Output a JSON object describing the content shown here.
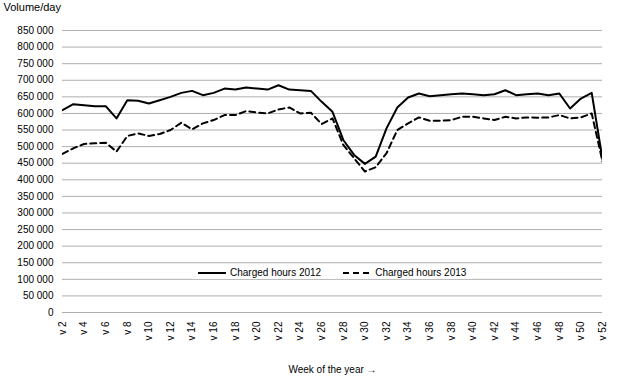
{
  "chart_data": {
    "type": "line",
    "y_label": "Volume/day",
    "x_label": "Week of the year",
    "x": [
      2,
      3,
      4,
      5,
      6,
      7,
      8,
      9,
      10,
      11,
      12,
      13,
      14,
      15,
      16,
      17,
      18,
      19,
      20,
      21,
      22,
      23,
      24,
      25,
      26,
      27,
      28,
      29,
      30,
      31,
      32,
      33,
      34,
      35,
      36,
      37,
      38,
      39,
      40,
      41,
      42,
      43,
      44,
      45,
      46,
      47,
      48,
      49,
      50,
      51,
      52
    ],
    "series": [
      {
        "name": "Charged hours 2012",
        "color": "#000000",
        "line_style": "solid",
        "values": [
          610000,
          628000,
          625000,
          622000,
          622000,
          585000,
          640000,
          638000,
          630000,
          640000,
          650000,
          662000,
          668000,
          655000,
          662000,
          675000,
          672000,
          678000,
          675000,
          672000,
          685000,
          672000,
          670000,
          668000,
          635000,
          605000,
          520000,
          475000,
          448000,
          470000,
          555000,
          618000,
          648000,
          660000,
          652000,
          655000,
          658000,
          660000,
          658000,
          655000,
          658000,
          670000,
          655000,
          658000,
          660000,
          655000,
          660000,
          615000,
          645000,
          662000,
          462000
        ]
      },
      {
        "name": "Charged hours 2013",
        "color": "#000000",
        "line_style": "dashed",
        "values": [
          478000,
          495000,
          508000,
          510000,
          512000,
          485000,
          532000,
          540000,
          532000,
          538000,
          550000,
          572000,
          552000,
          570000,
          580000,
          595000,
          595000,
          607000,
          603000,
          600000,
          612000,
          618000,
          600000,
          602000,
          568000,
          585000,
          505000,
          465000,
          425000,
          438000,
          480000,
          550000,
          570000,
          588000,
          578000,
          578000,
          580000,
          590000,
          590000,
          585000,
          580000,
          590000,
          585000,
          588000,
          587000,
          588000,
          595000,
          585000,
          588000,
          600000,
          455000
        ]
      }
    ],
    "xlim": [
      2,
      52
    ],
    "xticks": [
      {
        "value": 2,
        "label": "v 2"
      },
      {
        "value": 4,
        "label": "v 4"
      },
      {
        "value": 6,
        "label": "v 6"
      },
      {
        "value": 8,
        "label": "v 8"
      },
      {
        "value": 10,
        "label": "v 10"
      },
      {
        "value": 12,
        "label": "v 12"
      },
      {
        "value": 14,
        "label": "v 14"
      },
      {
        "value": 16,
        "label": "v 16"
      },
      {
        "value": 18,
        "label": "v 18"
      },
      {
        "value": 20,
        "label": "v 20"
      },
      {
        "value": 22,
        "label": "v 22"
      },
      {
        "value": 24,
        "label": "v 24"
      },
      {
        "value": 26,
        "label": "v 26"
      },
      {
        "value": 28,
        "label": "v 28"
      },
      {
        "value": 30,
        "label": "v 30"
      },
      {
        "value": 32,
        "label": "v 32"
      },
      {
        "value": 34,
        "label": "v 34"
      },
      {
        "value": 36,
        "label": "v 36"
      },
      {
        "value": 38,
        "label": "v 38"
      },
      {
        "value": 40,
        "label": "v 40"
      },
      {
        "value": 42,
        "label": "v 42"
      },
      {
        "value": 44,
        "label": "v 44"
      },
      {
        "value": 46,
        "label": "v 46"
      },
      {
        "value": 48,
        "label": "v 48"
      },
      {
        "value": 50,
        "label": "v 50"
      },
      {
        "value": 52,
        "label": "v 52"
      }
    ],
    "ylim": [
      0,
      850000
    ],
    "yticks": [
      0,
      {
        "value": 50000,
        "label": "50 000"
      },
      {
        "value": 100000,
        "label": "100 000"
      },
      {
        "value": 150000,
        "label": "150 000"
      },
      {
        "value": 200000,
        "label": "200 000"
      },
      {
        "value": 250000,
        "label": "250 000"
      },
      {
        "value": 300000,
        "label": "300 000"
      },
      {
        "value": 350000,
        "label": "350 000"
      },
      {
        "value": 400000,
        "label": "400 000"
      },
      {
        "value": 450000,
        "label": "450 000"
      },
      {
        "value": 500000,
        "label": "500 000"
      },
      {
        "value": 550000,
        "label": "550 000"
      },
      {
        "value": 600000,
        "label": "600 000"
      },
      {
        "value": 650000,
        "label": "650 000"
      },
      {
        "value": 700000,
        "label": "700 000"
      },
      {
        "value": 750000,
        "label": "750 000"
      },
      {
        "value": 800000,
        "label": "800 000"
      },
      {
        "value": 850000,
        "label": "850 000"
      }
    ],
    "grid": true,
    "legend": "bottom"
  }
}
